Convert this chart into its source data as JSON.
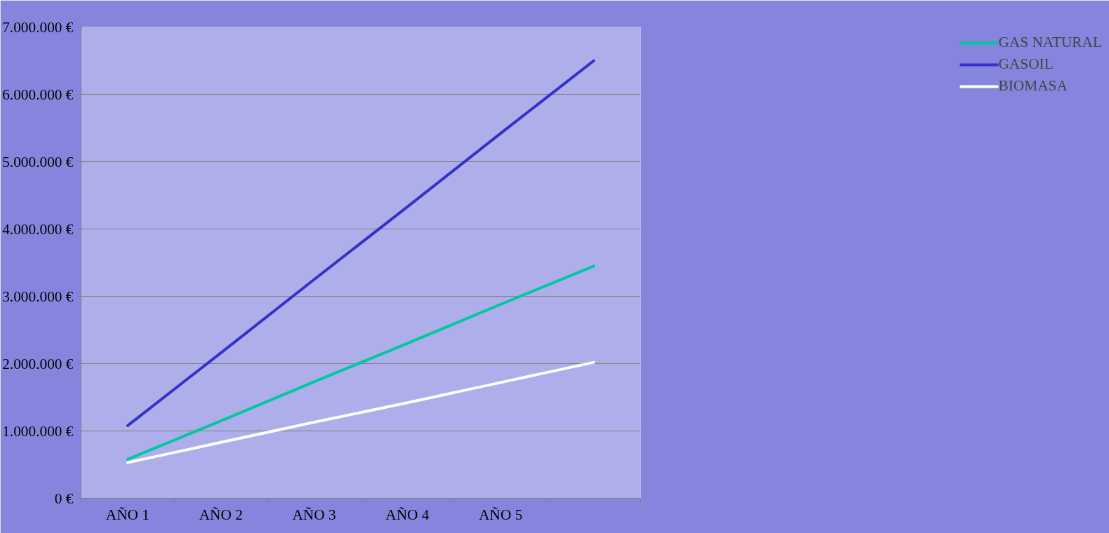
{
  "chart_data": {
    "type": "line",
    "categories": [
      "AÑO 1",
      "AÑO 2",
      "AÑO 3",
      "AÑO 4",
      "AÑO 5",
      null
    ],
    "series": [
      {
        "name": "GAS NATURAL",
        "color": "#00c8a0",
        "values": [
          580000,
          1150000,
          1730000,
          2300000,
          2880000,
          3450000
        ]
      },
      {
        "name": "GASOIL",
        "color": "#3333c8",
        "values": [
          1080000,
          2160000,
          3250000,
          4330000,
          5420000,
          6500000
        ]
      },
      {
        "name": "BIOMASA",
        "color": "#ffffff",
        "values": [
          530000,
          830000,
          1130000,
          1420000,
          1720000,
          2020000
        ]
      }
    ],
    "ylim": [
      0,
      7000000
    ],
    "yticks": [
      {
        "value": 0,
        "label": "0 €"
      },
      {
        "value": 1000000,
        "label": "1.000.000 €"
      },
      {
        "value": 2000000,
        "label": "2.000.000 €"
      },
      {
        "value": 3000000,
        "label": "3.000.000 €"
      },
      {
        "value": 4000000,
        "label": "4.000.000 €"
      },
      {
        "value": 5000000,
        "label": "5.000.000 €"
      },
      {
        "value": 6000000,
        "label": "6.000.000 €"
      },
      {
        "value": 7000000,
        "label": "7.000.000 €"
      }
    ],
    "grid": "y",
    "legend": "right",
    "marker": "none",
    "line_style": "solid"
  }
}
